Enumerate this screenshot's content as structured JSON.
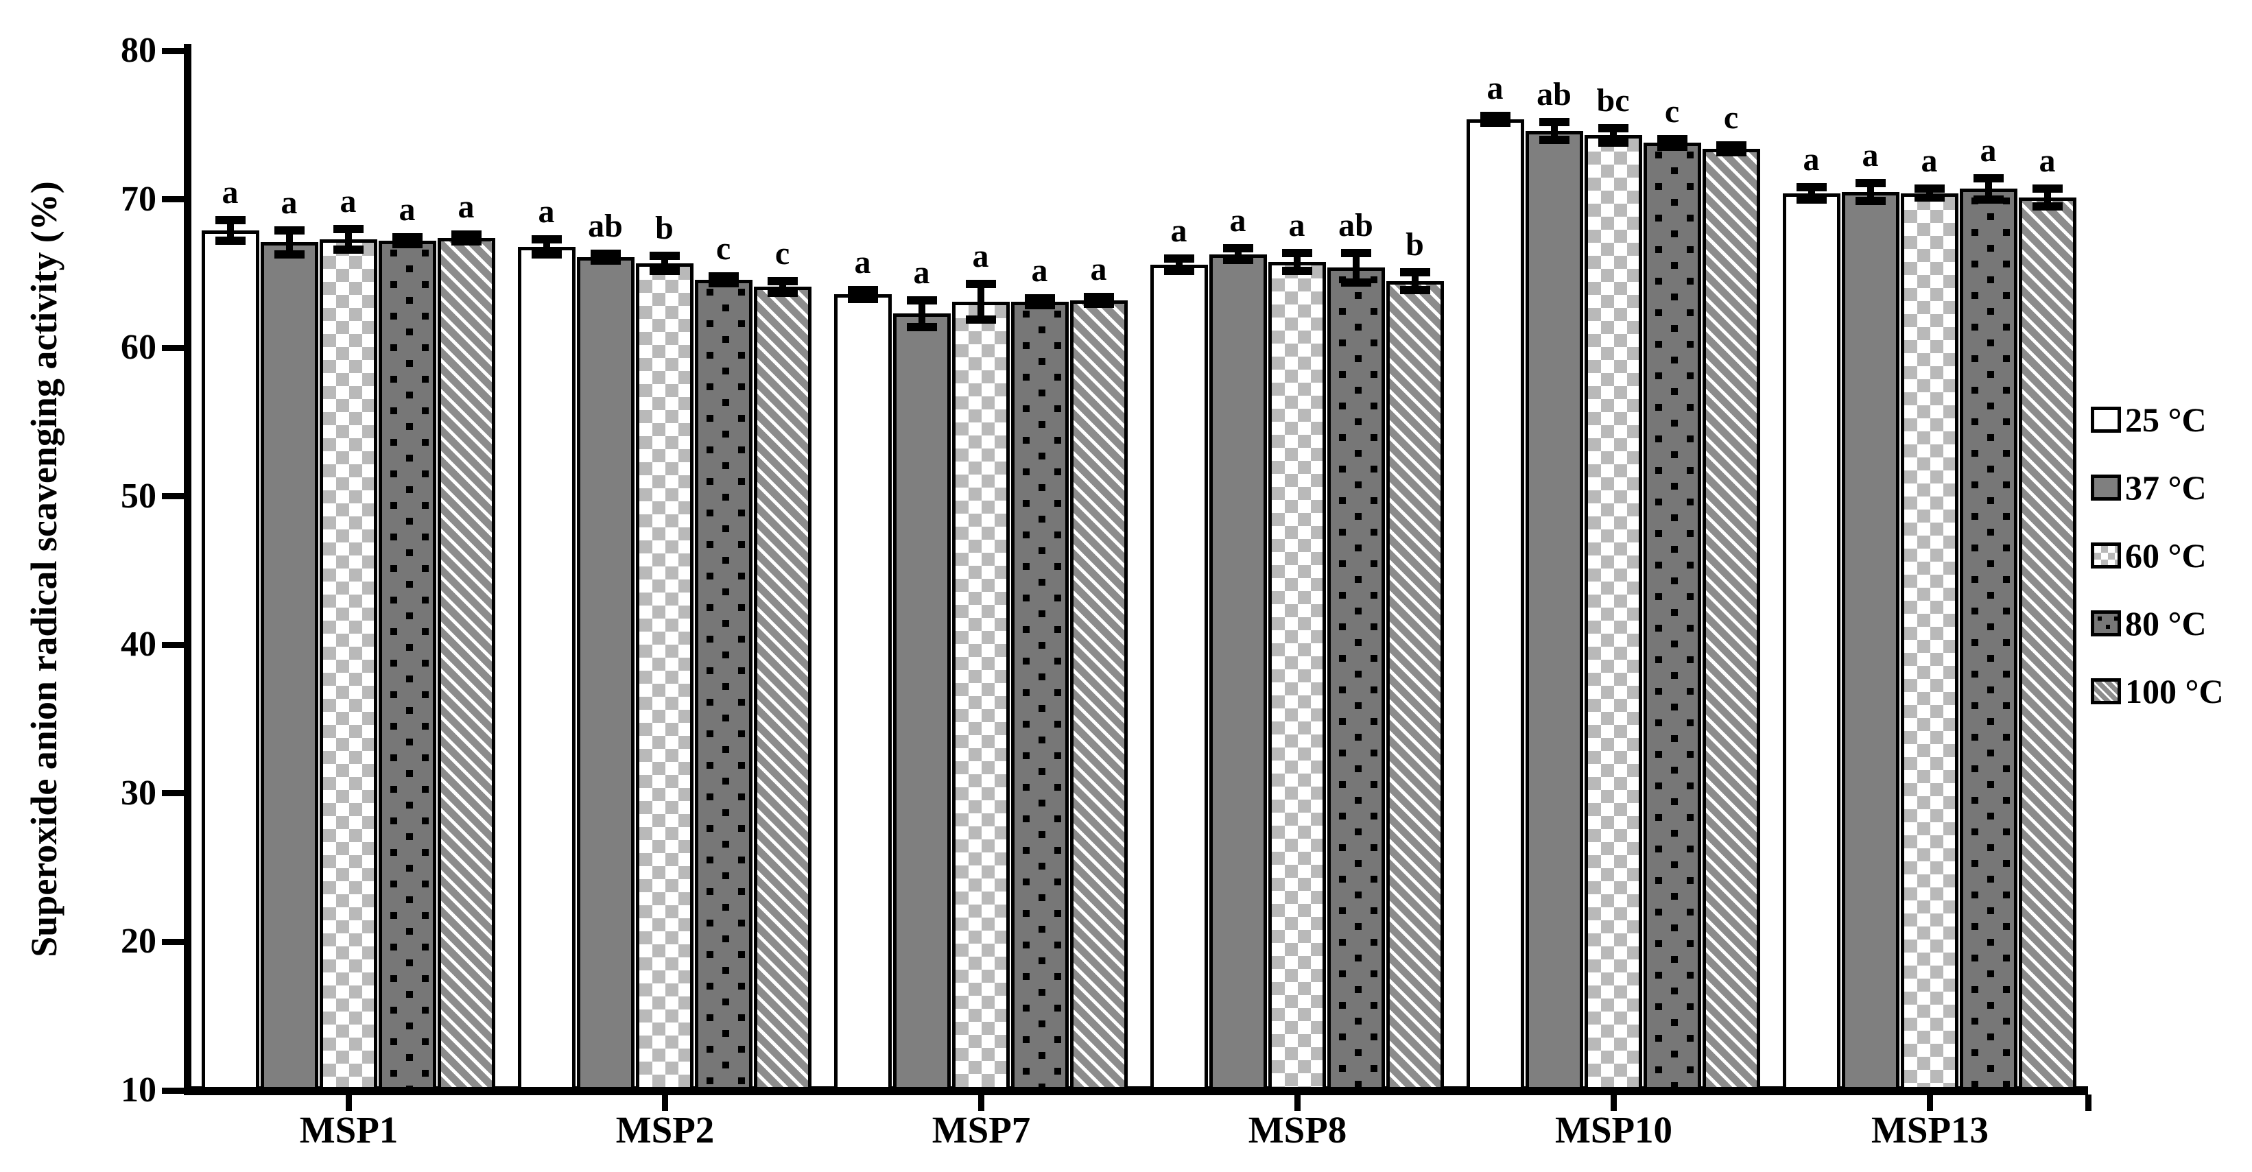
{
  "chart_data": {
    "type": "bar",
    "title": "",
    "xlabel": "",
    "ylabel": "Superoxide anion radical scavenging activity (%)",
    "ylim": [
      10,
      80
    ],
    "yticks": [
      10,
      20,
      30,
      40,
      50,
      60,
      70,
      80
    ],
    "grid": false,
    "legend_position": "right",
    "categories": [
      "MSP1",
      "MSP2",
      "MSP7",
      "MSP8",
      "MSP10",
      "MSP13"
    ],
    "series": [
      {
        "name": "25 °C",
        "pattern": "plain-white",
        "values": [
          67.9,
          66.8,
          63.6,
          65.6,
          75.4,
          70.4
        ],
        "errors": [
          0.7,
          0.5,
          0.3,
          0.4,
          0.2,
          0.4
        ],
        "letters": [
          "a",
          "a",
          "a",
          "a",
          "a",
          "a"
        ]
      },
      {
        "name": "37 °C",
        "pattern": "solid-gray",
        "values": [
          67.1,
          66.1,
          62.3,
          66.3,
          74.6,
          70.5
        ],
        "errors": [
          0.8,
          0.2,
          0.9,
          0.4,
          0.6,
          0.6
        ],
        "letters": [
          "a",
          "ab",
          "a",
          "a",
          "ab",
          "a"
        ]
      },
      {
        "name": "60 °C",
        "pattern": "checkerboard",
        "values": [
          67.3,
          65.7,
          63.1,
          65.8,
          74.3,
          70.4
        ],
        "errors": [
          0.7,
          0.5,
          1.2,
          0.6,
          0.5,
          0.3
        ],
        "letters": [
          "a",
          "b",
          "a",
          "a",
          "bc",
          "a"
        ]
      },
      {
        "name": "80 °C",
        "pattern": "dotted",
        "values": [
          67.2,
          64.6,
          63.1,
          65.4,
          73.8,
          70.7
        ],
        "errors": [
          0.2,
          0.2,
          0.25,
          1.0,
          0.25,
          0.7
        ],
        "letters": [
          "a",
          "c",
          "a",
          "ab",
          "c",
          "a"
        ]
      },
      {
        "name": "100 °C",
        "pattern": "diagonal-stripes",
        "values": [
          67.4,
          64.1,
          63.2,
          64.5,
          73.4,
          70.1
        ],
        "errors": [
          0.2,
          0.4,
          0.2,
          0.6,
          0.25,
          0.6
        ],
        "letters": [
          "a",
          "c",
          "a",
          "b",
          "c",
          "a"
        ]
      }
    ]
  }
}
